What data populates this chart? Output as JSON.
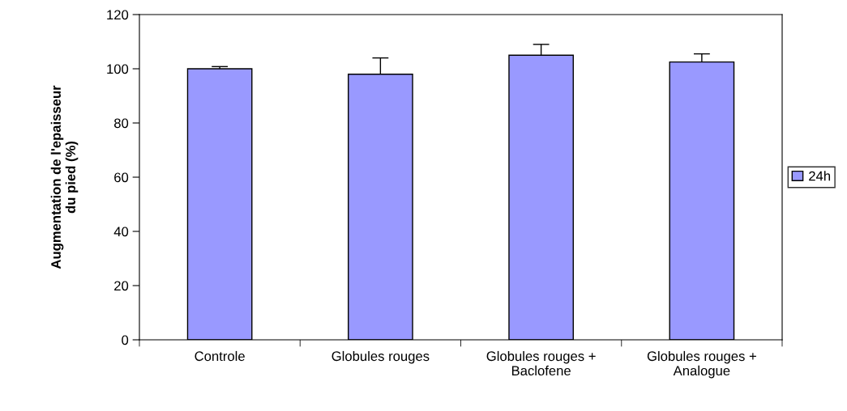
{
  "chart_data": {
    "type": "bar",
    "ylabel": "Augmentation de l'epaisseur\ndu pied (%)",
    "categories": [
      "Controle",
      "Globules rouges",
      "Globules rouges +\nBaclofene",
      "Globules rouges +\nAnalogue"
    ],
    "series": [
      {
        "name": "24h",
        "color": "#9999ff",
        "values": [
          100,
          98,
          105,
          102.5
        ],
        "errors": [
          [
            100,
            100.8
          ],
          [
            98,
            104
          ],
          [
            105,
            109
          ],
          [
            102.5,
            105.5
          ]
        ]
      }
    ],
    "ylim": [
      0,
      120
    ],
    "yticks": [
      0,
      20,
      40,
      60,
      80,
      100,
      120
    ],
    "grid": false,
    "legend": "right"
  }
}
